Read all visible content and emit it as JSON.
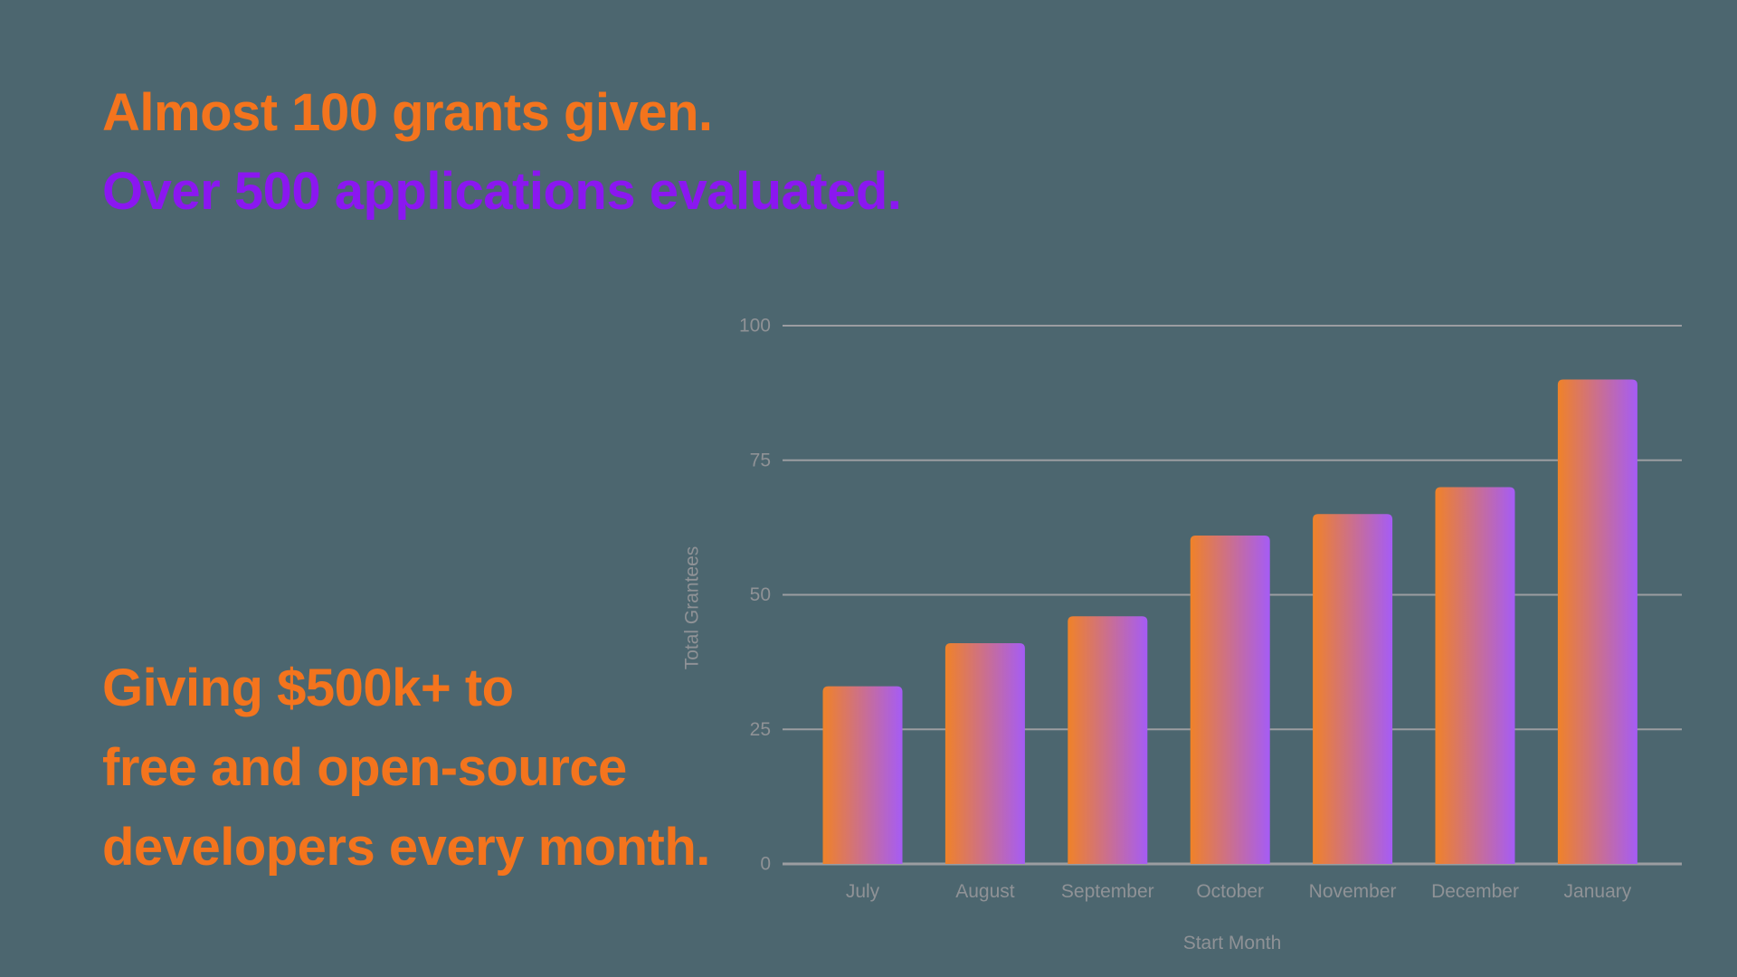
{
  "page": {
    "background_color": "#4C666F"
  },
  "headline": {
    "line1": "Almost 100 grants given.",
    "line2": "Over 500 applications evaluated.",
    "line1_color": "#F4741D",
    "line2_color": "#8B17F0"
  },
  "subheadline": {
    "color": "#F4741D",
    "line1": "Giving $500k+ to",
    "line2": "free and open-source",
    "line3": "developers every month."
  },
  "chart_data": {
    "type": "bar",
    "title": "",
    "categories": [
      "July",
      "August",
      "September",
      "October",
      "November",
      "December",
      "January"
    ],
    "values": [
      33,
      41,
      46,
      61,
      65,
      70,
      90
    ],
    "xlabel": "Start Month",
    "ylabel": "Total Grantees",
    "ylim": [
      0,
      100
    ],
    "yticks": [
      0,
      25,
      50,
      75,
      100
    ],
    "grid": true,
    "legend": false,
    "bar_gradient_left": "#F08228",
    "bar_gradient_right": "#A55CF5",
    "gridline_color": "#9B9DA1",
    "axis_line_color": "#9B9DA1",
    "axis_text_color": "#8F9296"
  }
}
